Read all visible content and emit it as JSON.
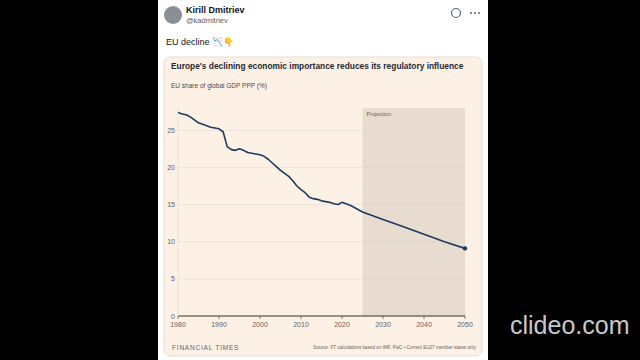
{
  "post": {
    "author": "Kirill Dmitriev",
    "handle": "@kadmitriev",
    "text": "EU decline 📉👇"
  },
  "watermark": "clideo.com",
  "chart_data": {
    "type": "line",
    "title": "Europe's declining economic importance reduces its regulatory influence",
    "subtitle": "EU share of global GDP PPP (%)",
    "source": "Source: FT calculations based on IMF, PwC • Current EU27 member states only",
    "publisher": "FINANCIAL TIMES",
    "x": [
      1980,
      1981,
      1982,
      1983,
      1984,
      1985,
      1986,
      1987,
      1988,
      1989,
      1990,
      1991,
      1992,
      1993,
      1994,
      1995,
      1996,
      1997,
      1998,
      1999,
      2000,
      2001,
      2002,
      2003,
      2004,
      2005,
      2006,
      2007,
      2008,
      2009,
      2010,
      2011,
      2012,
      2013,
      2014,
      2015,
      2016,
      2017,
      2018,
      2019,
      2020,
      2021,
      2022,
      2023,
      2024,
      2025,
      2030,
      2035,
      2040,
      2045,
      2050
    ],
    "values": [
      27.4,
      27.2,
      27.1,
      26.8,
      26.4,
      26.0,
      25.8,
      25.6,
      25.4,
      25.3,
      25.2,
      24.8,
      22.8,
      22.4,
      22.3,
      22.5,
      22.3,
      22.0,
      21.9,
      21.8,
      21.7,
      21.5,
      21.1,
      20.6,
      20.1,
      19.6,
      19.2,
      18.8,
      18.2,
      17.5,
      17.0,
      16.6,
      16.0,
      15.8,
      15.7,
      15.5,
      15.4,
      15.3,
      15.1,
      15.0,
      15.3,
      15.1,
      14.9,
      14.6,
      14.3,
      14.0,
      13.0,
      12.0,
      11.0,
      10.0,
      9.1
    ],
    "color": "#1d3a5f",
    "xlim": [
      1980,
      2050
    ],
    "xticks": [
      1980,
      1990,
      2000,
      2010,
      2020,
      2030,
      2040,
      2050
    ],
    "ylim": [
      0,
      28
    ],
    "yticks": [
      0,
      5,
      10,
      15,
      20,
      25
    ],
    "grid": true,
    "annotations": [
      {
        "label": "Projection",
        "x_start": 2025,
        "x_end": 2050
      }
    ]
  }
}
